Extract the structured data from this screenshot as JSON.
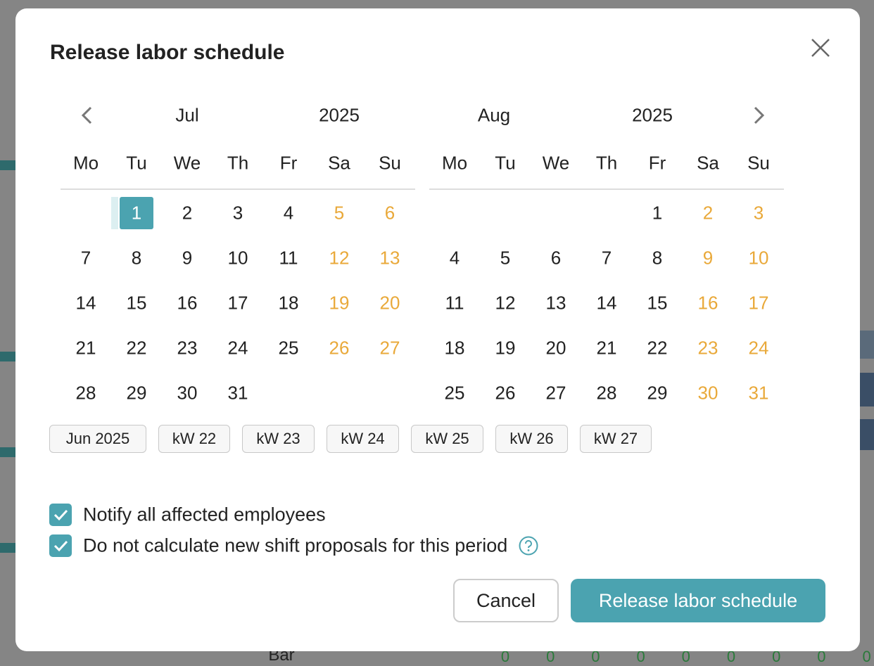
{
  "dialog": {
    "title": "Release labor schedule",
    "calendars": [
      {
        "month": "Jul",
        "year": "2025",
        "selected": 1,
        "weekdays": [
          "Mo",
          "Tu",
          "We",
          "Th",
          "Fr",
          "Sa",
          "Su"
        ],
        "weeks": [
          [
            null,
            1,
            2,
            3,
            4,
            5,
            6
          ],
          [
            7,
            8,
            9,
            10,
            11,
            12,
            13
          ],
          [
            14,
            15,
            16,
            17,
            18,
            19,
            20
          ],
          [
            21,
            22,
            23,
            24,
            25,
            26,
            27
          ],
          [
            28,
            29,
            30,
            31,
            null,
            null,
            null
          ]
        ]
      },
      {
        "month": "Aug",
        "year": "2025",
        "weekdays": [
          "Mo",
          "Tu",
          "We",
          "Th",
          "Fr",
          "Sa",
          "Su"
        ],
        "weeks": [
          [
            null,
            null,
            null,
            null,
            1,
            2,
            3
          ],
          [
            4,
            5,
            6,
            7,
            8,
            9,
            10
          ],
          [
            11,
            12,
            13,
            14,
            15,
            16,
            17
          ],
          [
            18,
            19,
            20,
            21,
            22,
            23,
            24
          ],
          [
            25,
            26,
            27,
            28,
            29,
            30,
            31
          ]
        ]
      }
    ],
    "quick_buttons": [
      "Jun 2025",
      "kW 22",
      "kW 23",
      "kW 24",
      "kW 25",
      "kW 26",
      "kW 27"
    ],
    "options": [
      {
        "label": "Notify all affected employees",
        "checked": true
      },
      {
        "label": "Do not calculate new shift proposals for this period",
        "checked": true,
        "help": true
      }
    ],
    "buttons": {
      "cancel": "Cancel",
      "submit": "Release labor schedule"
    }
  },
  "background": {
    "row_label": "Bar",
    "values": [
      0,
      0,
      0,
      0,
      0,
      0,
      0,
      0,
      0
    ]
  }
}
